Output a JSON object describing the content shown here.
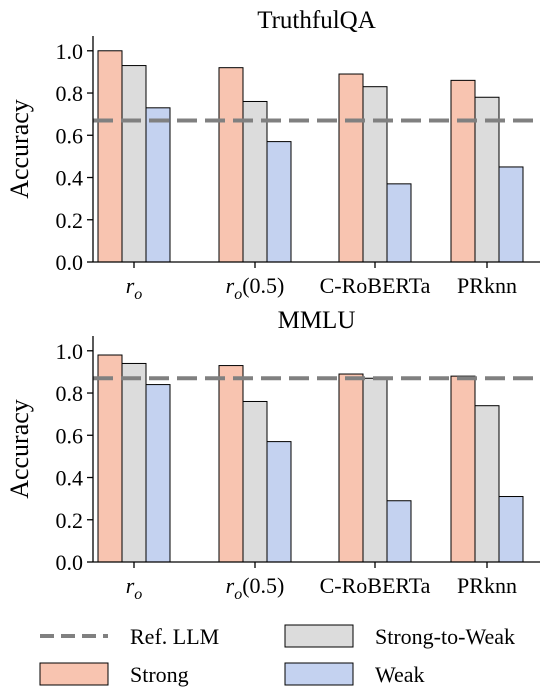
{
  "legend": [
    {
      "name": "Ref. LLM",
      "kind": "line",
      "color": "#808080"
    },
    {
      "name": "Strong-to-Weak",
      "kind": "patch",
      "color": "#dcdcdc"
    },
    {
      "name": "Strong",
      "kind": "patch",
      "color": "#f8c4b0"
    },
    {
      "name": "Weak",
      "kind": "patch",
      "color": "#c4d2f0"
    }
  ],
  "chart_data": [
    {
      "type": "bar",
      "title": "TruthfulQA",
      "ylabel": "Accuracy",
      "xlabel": "",
      "categories": [
        "r_o",
        "r_o(0.5)",
        "C-RoBERTa",
        "PRknn"
      ],
      "ylim": [
        0,
        1.07
      ],
      "yticks": [
        "0.0",
        "0.2",
        "0.4",
        "0.6",
        "0.8",
        "1.0"
      ],
      "reference_line": {
        "name": "Ref. LLM",
        "value": 0.67
      },
      "series": [
        {
          "name": "Strong",
          "values": [
            1.0,
            0.92,
            0.89,
            0.86
          ]
        },
        {
          "name": "Strong-to-Weak",
          "values": [
            0.93,
            0.76,
            0.83,
            0.78
          ]
        },
        {
          "name": "Weak",
          "values": [
            0.73,
            0.57,
            0.37,
            0.45
          ]
        }
      ]
    },
    {
      "type": "bar",
      "title": "MMLU",
      "ylabel": "Accuracy",
      "xlabel": "",
      "categories": [
        "r_o",
        "r_o(0.5)",
        "C-RoBERTa",
        "PRknn"
      ],
      "ylim": [
        0,
        1.07
      ],
      "yticks": [
        "0.0",
        "0.2",
        "0.4",
        "0.6",
        "0.8",
        "1.0"
      ],
      "reference_line": {
        "name": "Ref. LLM",
        "value": 0.87
      },
      "series": [
        {
          "name": "Strong",
          "values": [
            0.98,
            0.93,
            0.89,
            0.88
          ]
        },
        {
          "name": "Strong-to-Weak",
          "values": [
            0.94,
            0.76,
            0.87,
            0.74
          ]
        },
        {
          "name": "Weak",
          "values": [
            0.84,
            0.57,
            0.29,
            0.31
          ]
        }
      ]
    }
  ]
}
